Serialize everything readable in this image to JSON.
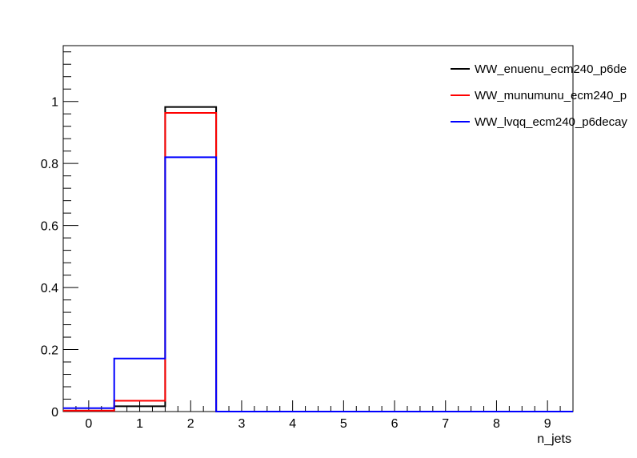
{
  "chart_data": {
    "type": "histogram",
    "xlabel": "n_jets",
    "ylabel": "",
    "title": "",
    "bin_centers": [
      0,
      1,
      2,
      3,
      4,
      5,
      6,
      7,
      8,
      9
    ],
    "xlim": [
      -0.5,
      9.5
    ],
    "ylim": [
      0,
      1.18
    ],
    "x_ticks": [
      0,
      1,
      2,
      3,
      4,
      5,
      6,
      7,
      8,
      9
    ],
    "y_ticks": [
      0,
      0.2,
      0.4,
      0.6,
      0.8,
      1
    ],
    "y_tick_labels": [
      "0",
      "0.2",
      "0.4",
      "0.6",
      "0.8",
      "1"
    ],
    "grid": false,
    "legend_position": "top-right",
    "series": [
      {
        "name": "WW_enuenu_ecm240_p6de",
        "color": "#000000",
        "values": [
          0.003,
          0.017,
          0.982,
          0,
          0,
          0,
          0,
          0,
          0,
          0
        ]
      },
      {
        "name": "WW_munumunu_ecm240_p",
        "color": "#ff0000",
        "values": [
          0.003,
          0.035,
          0.963,
          0,
          0,
          0,
          0,
          0,
          0,
          0
        ]
      },
      {
        "name": "WW_lvqq_ecm240_p6decay",
        "color": "#0000ff",
        "values": [
          0.011,
          0.171,
          0.82,
          0,
          0,
          0,
          0,
          0,
          0,
          0
        ]
      }
    ]
  }
}
